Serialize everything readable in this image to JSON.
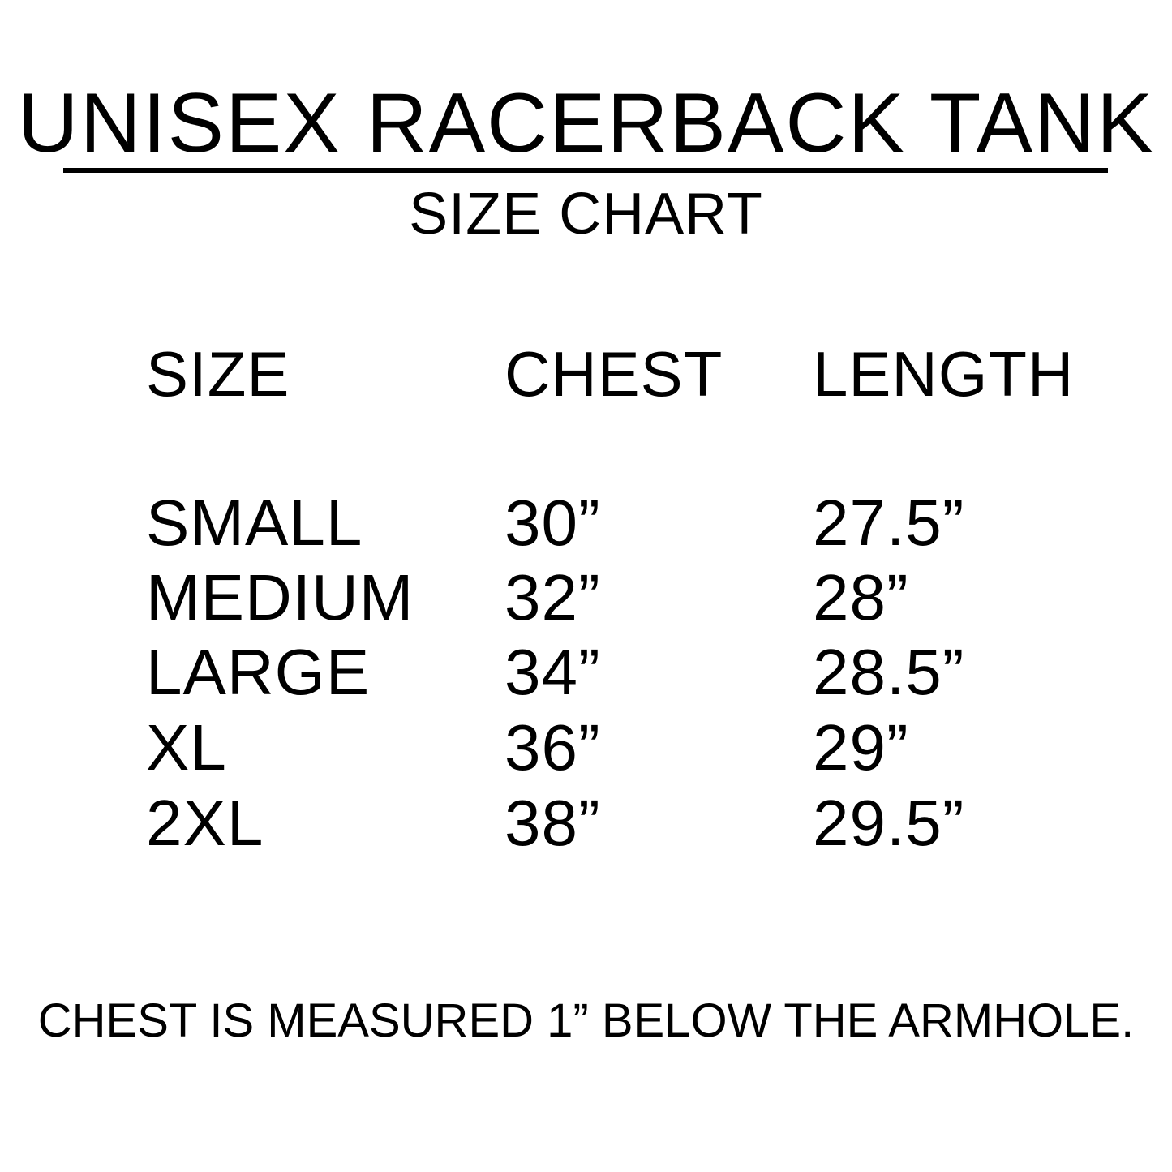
{
  "title": "UNISEX RACERBACK TANK",
  "subtitle": "SIZE CHART",
  "table": {
    "headers": [
      "SIZE",
      "CHEST",
      "LENGTH"
    ],
    "rows": [
      [
        "SMALL",
        "30”",
        "27.5”"
      ],
      [
        "MEDIUM",
        "32”",
        "28”"
      ],
      [
        "LARGE",
        "34”",
        "28.5”"
      ],
      [
        "XL",
        "36”",
        "29”"
      ],
      [
        "2XL",
        "38”",
        "29.5”"
      ]
    ]
  },
  "footer": "CHEST IS MEASURED 1” BELOW THE ARMHOLE."
}
